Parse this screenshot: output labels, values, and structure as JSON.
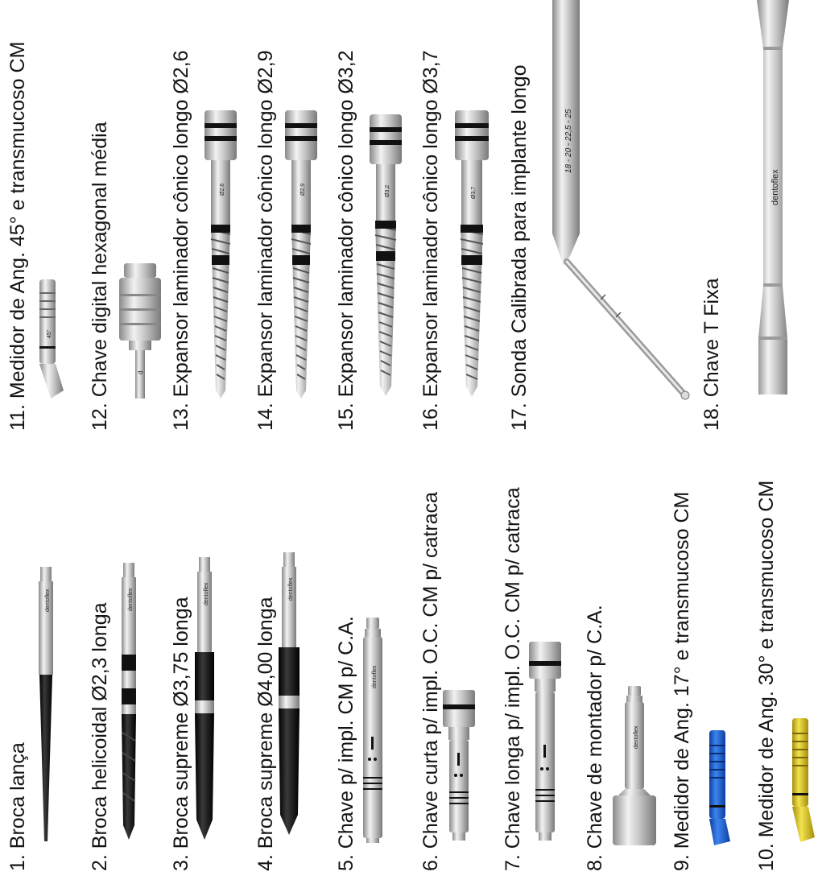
{
  "catalog": {
    "brand_mark": "dentoflex",
    "items": [
      {
        "number": "1.",
        "name": "Broca lança"
      },
      {
        "number": "2.",
        "name": "Broca helicoidal Ø2,3 longa"
      },
      {
        "number": "3.",
        "name": "Broca supreme Ø3,75 longa"
      },
      {
        "number": "4.",
        "name": "Broca supreme Ø4,00 longa"
      },
      {
        "number": "5.",
        "name": "Chave p/ impl. CM p/ C.A."
      },
      {
        "number": "6.",
        "name": "Chave curta p/ impl. O.C. CM p/ catraca"
      },
      {
        "number": "7.",
        "name": "Chave longa p/ impl. O.C. CM p/ catraca"
      },
      {
        "number": "8.",
        "name": "Chave de montador p/ C.A."
      },
      {
        "number": "9.",
        "name": "Medidor de Ang. 17° e transmucoso CM"
      },
      {
        "number": "10.",
        "name": "Medidor de Ang. 30° e transmucoso CM"
      },
      {
        "number": "11.",
        "name": "Medidor de Ang. 45° e transmucoso CM"
      },
      {
        "number": "12.",
        "name": "Chave digital hexagonal média"
      },
      {
        "number": "13.",
        "name": "Expansor laminador cônico longo Ø2,6"
      },
      {
        "number": "14.",
        "name": "Expansor laminador cônico longo Ø2,9"
      },
      {
        "number": "15.",
        "name": "Expansor laminador cônico longo Ø3,2"
      },
      {
        "number": "16.",
        "name": "Expansor laminador cônico longo Ø3,7"
      },
      {
        "number": "17.",
        "name": "Sonda Calibrada para implante longo"
      },
      {
        "number": "18.",
        "name": "Chave T Fixa"
      }
    ],
    "expander_marks": [
      "Ø2,6",
      "Ø2,9",
      "Ø3,2",
      "Ø3,7"
    ],
    "gauge_marks": [
      "45°"
    ],
    "probe_scale": "18 - 20 - 22,5 - 25",
    "colors": {
      "steel_light": "#e6e6e6",
      "steel_dark": "#8a8a8a",
      "black": "#141414",
      "blue": "#1f5fd6",
      "gold": "#d9c21c",
      "text": "#141414"
    }
  }
}
